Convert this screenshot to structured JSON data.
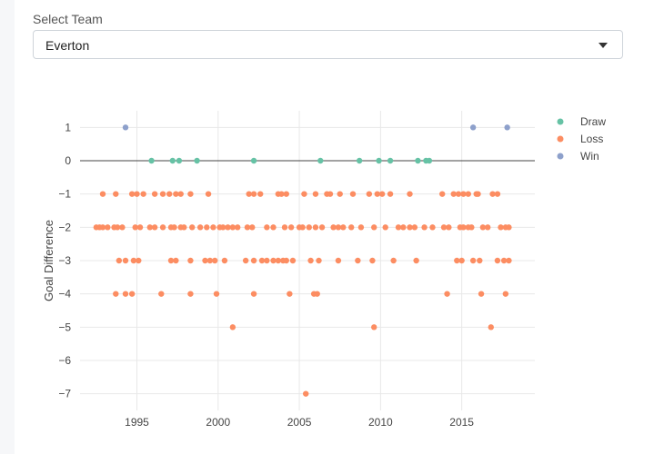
{
  "team_select": {
    "label": "Select Team",
    "value": "Everton"
  },
  "colors": {
    "Draw": "#66c2a5",
    "Loss": "#fc8d62",
    "Win": "#8da0cb",
    "grid": "#e8e8e8",
    "zeroline": "#444444"
  },
  "chart_data": {
    "type": "scatter",
    "ylabel": "Goal Difference",
    "xlabel": "",
    "xlim": [
      1991.5,
      2019.5
    ],
    "ylim": [
      -7.5,
      1.5
    ],
    "x_ticks": [
      1995,
      2000,
      2005,
      2010,
      2015
    ],
    "y_ticks": [
      1,
      0,
      -1,
      -2,
      -3,
      -4,
      -5,
      -6,
      -7
    ],
    "grid": true,
    "legend_position": "top-right",
    "series": [
      {
        "name": "Draw",
        "points": [
          [
            1995.9,
            0
          ],
          [
            1997.2,
            0
          ],
          [
            1997.6,
            0
          ],
          [
            1998.7,
            0
          ],
          [
            2002.2,
            0
          ],
          [
            2006.3,
            0
          ],
          [
            2008.7,
            0
          ],
          [
            2009.9,
            0
          ],
          [
            2010.6,
            0
          ],
          [
            2012.3,
            0
          ],
          [
            2012.8,
            0
          ],
          [
            2013.0,
            0
          ]
        ]
      },
      {
        "name": "Win",
        "points": [
          [
            1994.3,
            1
          ],
          [
            2015.7,
            1
          ],
          [
            2017.8,
            1
          ]
        ]
      },
      {
        "name": "Loss",
        "points": [
          [
            1992.9,
            -1
          ],
          [
            1993.7,
            -1
          ],
          [
            1994.7,
            -1
          ],
          [
            1995.0,
            -1
          ],
          [
            1995.4,
            -1
          ],
          [
            1996.1,
            -1
          ],
          [
            1996.6,
            -1
          ],
          [
            1997.0,
            -1
          ],
          [
            1997.4,
            -1
          ],
          [
            1997.7,
            -1
          ],
          [
            1998.3,
            -1
          ],
          [
            1999.4,
            -1
          ],
          [
            2001.9,
            -1
          ],
          [
            2002.2,
            -1
          ],
          [
            2002.6,
            -1
          ],
          [
            2003.7,
            -1
          ],
          [
            2003.9,
            -1
          ],
          [
            2004.2,
            -1
          ],
          [
            2005.3,
            -1
          ],
          [
            2006.0,
            -1
          ],
          [
            2006.7,
            -1
          ],
          [
            2006.9,
            -1
          ],
          [
            2007.5,
            -1
          ],
          [
            2008.3,
            -1
          ],
          [
            2009.3,
            -1
          ],
          [
            2009.8,
            -1
          ],
          [
            2010.1,
            -1
          ],
          [
            2010.6,
            -1
          ],
          [
            2011.8,
            -1
          ],
          [
            2013.8,
            -1
          ],
          [
            2014.5,
            -1
          ],
          [
            2014.8,
            -1
          ],
          [
            2015.1,
            -1
          ],
          [
            2015.4,
            -1
          ],
          [
            2015.9,
            -1
          ],
          [
            2016.0,
            -1
          ],
          [
            2016.9,
            -1
          ],
          [
            2017.2,
            -1
          ],
          [
            1992.5,
            -2
          ],
          [
            1992.7,
            -2
          ],
          [
            1992.9,
            -2
          ],
          [
            1993.2,
            -2
          ],
          [
            1993.6,
            -2
          ],
          [
            1993.8,
            -2
          ],
          [
            1994.1,
            -2
          ],
          [
            1994.9,
            -2
          ],
          [
            1995.2,
            -2
          ],
          [
            1995.8,
            -2
          ],
          [
            1996.1,
            -2
          ],
          [
            1996.6,
            -2
          ],
          [
            1997.1,
            -2
          ],
          [
            1997.3,
            -2
          ],
          [
            1997.7,
            -2
          ],
          [
            1997.9,
            -2
          ],
          [
            1998.4,
            -2
          ],
          [
            1998.9,
            -2
          ],
          [
            1999.3,
            -2
          ],
          [
            1999.7,
            -2
          ],
          [
            2000.1,
            -2
          ],
          [
            2000.3,
            -2
          ],
          [
            2000.6,
            -2
          ],
          [
            2000.9,
            -2
          ],
          [
            2001.2,
            -2
          ],
          [
            2001.8,
            -2
          ],
          [
            2002.1,
            -2
          ],
          [
            2003.0,
            -2
          ],
          [
            2003.4,
            -2
          ],
          [
            2004.1,
            -2
          ],
          [
            2004.5,
            -2
          ],
          [
            2005.0,
            -2
          ],
          [
            2005.2,
            -2
          ],
          [
            2005.6,
            -2
          ],
          [
            2006.0,
            -2
          ],
          [
            2006.4,
            -2
          ],
          [
            2007.1,
            -2
          ],
          [
            2007.4,
            -2
          ],
          [
            2007.7,
            -2
          ],
          [
            2008.2,
            -2
          ],
          [
            2008.8,
            -2
          ],
          [
            2009.6,
            -2
          ],
          [
            2010.3,
            -2
          ],
          [
            2011.1,
            -2
          ],
          [
            2011.4,
            -2
          ],
          [
            2011.8,
            -2
          ],
          [
            2012.1,
            -2
          ],
          [
            2012.7,
            -2
          ],
          [
            2013.2,
            -2
          ],
          [
            2013.9,
            -2
          ],
          [
            2014.2,
            -2
          ],
          [
            2014.9,
            -2
          ],
          [
            2015.1,
            -2
          ],
          [
            2015.4,
            -2
          ],
          [
            2015.6,
            -2
          ],
          [
            2016.3,
            -2
          ],
          [
            2016.6,
            -2
          ],
          [
            2017.4,
            -2
          ],
          [
            2017.7,
            -2
          ],
          [
            2017.9,
            -2
          ],
          [
            1993.9,
            -3
          ],
          [
            1994.3,
            -3
          ],
          [
            1994.8,
            -3
          ],
          [
            1995.1,
            -3
          ],
          [
            1997.1,
            -3
          ],
          [
            1997.4,
            -3
          ],
          [
            1998.3,
            -3
          ],
          [
            1999.2,
            -3
          ],
          [
            1999.5,
            -3
          ],
          [
            1999.8,
            -3
          ],
          [
            2000.4,
            -3
          ],
          [
            2001.7,
            -3
          ],
          [
            2002.2,
            -3
          ],
          [
            2002.7,
            -3
          ],
          [
            2003.0,
            -3
          ],
          [
            2003.4,
            -3
          ],
          [
            2003.7,
            -3
          ],
          [
            2004.0,
            -3
          ],
          [
            2004.2,
            -3
          ],
          [
            2004.6,
            -3
          ],
          [
            2005.7,
            -3
          ],
          [
            2006.2,
            -3
          ],
          [
            2007.4,
            -3
          ],
          [
            2008.6,
            -3
          ],
          [
            2009.5,
            -3
          ],
          [
            2010.8,
            -3
          ],
          [
            2012.2,
            -3
          ],
          [
            2014.7,
            -3
          ],
          [
            2015.0,
            -3
          ],
          [
            2015.7,
            -3
          ],
          [
            2016.1,
            -3
          ],
          [
            2017.2,
            -3
          ],
          [
            2017.6,
            -3
          ],
          [
            2017.9,
            -3
          ],
          [
            1993.7,
            -4
          ],
          [
            1994.3,
            -4
          ],
          [
            1994.7,
            -4
          ],
          [
            1996.5,
            -4
          ],
          [
            1998.3,
            -4
          ],
          [
            1999.9,
            -4
          ],
          [
            2002.2,
            -4
          ],
          [
            2004.4,
            -4
          ],
          [
            2005.9,
            -4
          ],
          [
            2006.1,
            -4
          ],
          [
            2014.1,
            -4
          ],
          [
            2016.2,
            -4
          ],
          [
            2017.7,
            -4
          ],
          [
            2000.9,
            -5
          ],
          [
            2009.6,
            -5
          ],
          [
            2016.8,
            -5
          ],
          [
            2005.4,
            -7
          ]
        ]
      }
    ]
  }
}
